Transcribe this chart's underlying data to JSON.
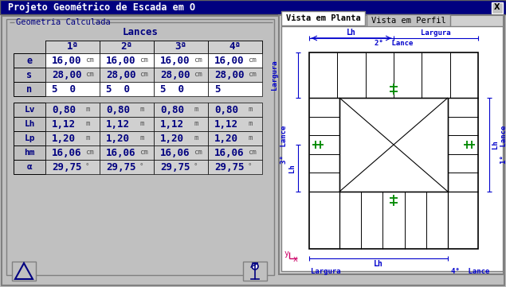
{
  "title": "Projeto Geométrico de Escada em O",
  "bg_color": "#c0c0c0",
  "title_bar_color": "#000080",
  "title_text_color": "#ffffff",
  "section_title": "Geometria Calculada",
  "lances_title": "Lances",
  "col_headers": [
    "1ª",
    "2ª",
    "3ª",
    "4ª"
  ],
  "row_labels_top": [
    "e",
    "s",
    "n"
  ],
  "row_data_top": [
    [
      "16,00",
      "cm",
      "16,00",
      "cm",
      "16,00",
      "cm",
      "16,00",
      "cm"
    ],
    [
      "28,00",
      "cm",
      "28,00",
      "cm",
      "28,00",
      "cm",
      "28,00",
      "cm"
    ],
    [
      "5  0",
      "",
      "5  0",
      "",
      "5  0",
      "",
      "5",
      ""
    ]
  ],
  "row_labels_bot": [
    "Lv",
    "Lh",
    "Lp",
    "hm",
    "α"
  ],
  "row_data_bot": [
    [
      "0,80",
      "m",
      "0,80",
      "m",
      "0,80",
      "m",
      "0,80",
      "m"
    ],
    [
      "1,12",
      "m",
      "1,12",
      "m",
      "1,12",
      "m",
      "1,12",
      "m"
    ],
    [
      "1,20",
      "m",
      "1,20",
      "m",
      "1,20",
      "m",
      "1,20",
      "m"
    ],
    [
      "16,06",
      "cm",
      "16,06",
      "cm",
      "16,06",
      "cm",
      "16,06",
      "cm"
    ],
    [
      "29,75",
      "°",
      "29,75",
      "°",
      "29,75",
      "°",
      "29,75",
      "°"
    ]
  ],
  "tab1": "Vista em Planta",
  "tab2": "Vista em Perfil",
  "ann_blue": "#0000cc",
  "dark_blue": "#000080",
  "green": "#008800",
  "white": "#ffffff",
  "black": "#000000",
  "gray_bg": "#c0c0c0",
  "cell_white": "#ffffff",
  "cell_gray": "#d0d0d0",
  "panel_gray": "#d8d8d8"
}
